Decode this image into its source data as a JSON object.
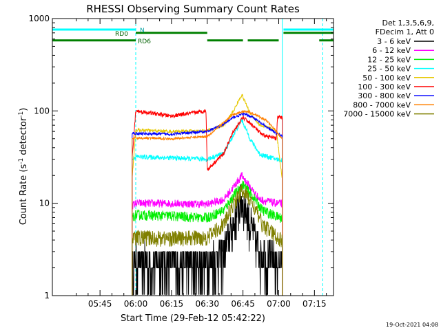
{
  "chart_data": {
    "type": "line",
    "title": "RHESSI Observing Summary Count Rates",
    "xlabel": "Start Time (29-Feb-12 05:42:22)",
    "ylabel_main": "Count Rate (s",
    "ylabel_sup1": "-1",
    "ylabel_mid": " detector",
    "ylabel_sup2": "-1",
    "ylabel_end": ")",
    "y_scale": "log",
    "ylim": [
      1,
      1000
    ],
    "xlim_minutes": [
      -20,
      98
    ],
    "x_ticks": [
      {
        "minutes": 0,
        "label": "05:45"
      },
      {
        "minutes": 15,
        "label": "06:00"
      },
      {
        "minutes": 30,
        "label": "06:15"
      },
      {
        "minutes": 45,
        "label": "06:30"
      },
      {
        "minutes": 60,
        "label": "06:45"
      },
      {
        "minutes": 75,
        "label": "07:00"
      },
      {
        "minutes": 90,
        "label": "07:15"
      }
    ],
    "y_ticks": [
      {
        "value": 1,
        "label": "1"
      },
      {
        "value": 10,
        "label": "10"
      },
      {
        "value": 100,
        "label": "100"
      },
      {
        "value": 1000,
        "label": "1000"
      }
    ],
    "legend_header": [
      "Det 1,3,5,6,9,",
      "FDecim 1, Att 0"
    ],
    "legend_position": "right",
    "series": [
      {
        "name": "3 - 6 keV",
        "color": "#000000",
        "base": 2.2,
        "peak": 11,
        "peak_time": 59.5,
        "width": 4.5,
        "noise": 0.55,
        "points": [
          [
            13.5,
            2.2
          ],
          [
            15,
            2.3
          ],
          [
            30,
            2.2
          ],
          [
            45,
            2.3
          ],
          [
            52,
            3
          ],
          [
            55,
            5
          ],
          [
            58,
            9
          ],
          [
            59.5,
            11
          ],
          [
            61,
            9
          ],
          [
            64,
            5
          ],
          [
            67,
            3
          ],
          [
            74,
            2.3
          ],
          [
            76.5,
            2.2
          ]
        ]
      },
      {
        "name": "6 - 12 keV",
        "color": "#ff00ff",
        "base": 9.8,
        "peak": 20,
        "peak_time": 59.5,
        "width": 5.5,
        "noise": 0.1,
        "points": [
          [
            13.5,
            9.5
          ],
          [
            15,
            10
          ],
          [
            30,
            10
          ],
          [
            45,
            9.8
          ],
          [
            52,
            11
          ],
          [
            56,
            15
          ],
          [
            59.5,
            20
          ],
          [
            63,
            15
          ],
          [
            67,
            11
          ],
          [
            74,
            10
          ],
          [
            76.5,
            10
          ]
        ]
      },
      {
        "name": "12 - 25 keV",
        "color": "#00ee00",
        "base": 7.2,
        "peak": 16,
        "peak_time": 60,
        "width": 6.5,
        "noise": 0.13,
        "points": [
          [
            13.5,
            7
          ],
          [
            15,
            7.5
          ],
          [
            30,
            7.3
          ],
          [
            45,
            7
          ],
          [
            52,
            8.5
          ],
          [
            56,
            12
          ],
          [
            60,
            16
          ],
          [
            64,
            12
          ],
          [
            68,
            8.5
          ],
          [
            74,
            7.2
          ],
          [
            76.5,
            7
          ]
        ]
      },
      {
        "name": "25 - 50 keV",
        "color": "#00ffff",
        "base": 31,
        "peak": 80,
        "peak_time": 59.5,
        "width": 4.5,
        "noise": 0.06,
        "points": [
          [
            13.5,
            30
          ],
          [
            15,
            32
          ],
          [
            30,
            31
          ],
          [
            45,
            30
          ],
          [
            52,
            35
          ],
          [
            56,
            55
          ],
          [
            59.5,
            80
          ],
          [
            63,
            50
          ],
          [
            67,
            34
          ],
          [
            74,
            30
          ],
          [
            76.5,
            29
          ]
        ]
      },
      {
        "name": "50 - 100 keV",
        "color": "#e6c800",
        "base": 60,
        "peak": 150,
        "peak_time": 59.5,
        "width": 3.8,
        "noise": 0.04,
        "points": [
          [
            13.5,
            19
          ],
          [
            15,
            62
          ],
          [
            30,
            60
          ],
          [
            45,
            61
          ],
          [
            52,
            70
          ],
          [
            56,
            100
          ],
          [
            59.5,
            150
          ],
          [
            63,
            95
          ],
          [
            67,
            70
          ],
          [
            74,
            62
          ],
          [
            76.5,
            18
          ]
        ]
      },
      {
        "name": "100 - 300 keV",
        "color": "#ff0000",
        "base": 88,
        "peak": 88,
        "peak_time": 59.5,
        "width": 6,
        "noise": 0.05,
        "points": [
          [
            13.5,
            30
          ],
          [
            15,
            100
          ],
          [
            30,
            88
          ],
          [
            44.5,
            100
          ],
          [
            45,
            23
          ],
          [
            52,
            35
          ],
          [
            56,
            60
          ],
          [
            60,
            85
          ],
          [
            64,
            70
          ],
          [
            68,
            55
          ],
          [
            74,
            50
          ],
          [
            74.5,
            85
          ],
          [
            76.5,
            85
          ]
        ]
      },
      {
        "name": "300 - 800 keV",
        "color": "#0000ff",
        "base": 57,
        "peak": 93,
        "peak_time": 60,
        "width": 9,
        "noise": 0.035,
        "points": [
          [
            13.5,
            58
          ],
          [
            15,
            57
          ],
          [
            30,
            56
          ],
          [
            45,
            60
          ],
          [
            52,
            72
          ],
          [
            56,
            85
          ],
          [
            60,
            93
          ],
          [
            64,
            86
          ],
          [
            68,
            72
          ],
          [
            74,
            57
          ],
          [
            76.5,
            54
          ]
        ]
      },
      {
        "name": "800 - 7000 keV",
        "color": "#ff8000",
        "base": 50,
        "peak": 100,
        "peak_time": 61,
        "width": 10,
        "noise": 0.03,
        "points": [
          [
            13.5,
            50
          ],
          [
            15,
            51
          ],
          [
            30,
            50
          ],
          [
            45,
            53
          ],
          [
            52,
            75
          ],
          [
            56,
            92
          ],
          [
            61,
            100
          ],
          [
            65,
            92
          ],
          [
            70,
            78
          ],
          [
            74,
            60
          ],
          [
            76.5,
            50
          ]
        ]
      },
      {
        "name": "7000 - 15000 keV",
        "color": "#808000",
        "base": 4.2,
        "peak": 14,
        "peak_time": 60,
        "width": 6.5,
        "noise": 0.2,
        "points": [
          [
            13.5,
            4
          ],
          [
            15,
            4.3
          ],
          [
            30,
            4.2
          ],
          [
            45,
            4.3
          ],
          [
            52,
            6
          ],
          [
            56,
            10
          ],
          [
            60,
            14
          ],
          [
            64,
            10
          ],
          [
            68,
            6
          ],
          [
            74,
            4.4
          ],
          [
            76.5,
            4
          ]
        ]
      }
    ],
    "state_bars": [
      {
        "label": "N",
        "color": "#00ffff",
        "level_value": 760,
        "segments": [
          [
            -20,
            15
          ],
          [
            77,
            98
          ]
        ]
      },
      {
        "label": "RD0",
        "color": "#008000",
        "level_value": 700,
        "segments": [
          [
            15,
            45
          ],
          [
            77,
            98
          ]
        ]
      },
      {
        "label": "RD6",
        "color": "#008000",
        "level_value": 580,
        "segments": [
          [
            -20,
            15
          ],
          [
            45,
            60
          ],
          [
            62,
            75
          ],
          [
            92,
            98
          ]
        ]
      }
    ],
    "vertical_markers": [
      {
        "minutes": -20,
        "style": "solid",
        "color": "#00ffff"
      },
      {
        "minutes": 15,
        "style": "dashed",
        "color": "#00ffff"
      },
      {
        "minutes": 76.5,
        "style": "solid",
        "color": "#00ffff"
      },
      {
        "minutes": 93.5,
        "style": "dashed",
        "color": "#00ffff"
      }
    ],
    "footer_date": "19-Oct-2021 04:08"
  }
}
